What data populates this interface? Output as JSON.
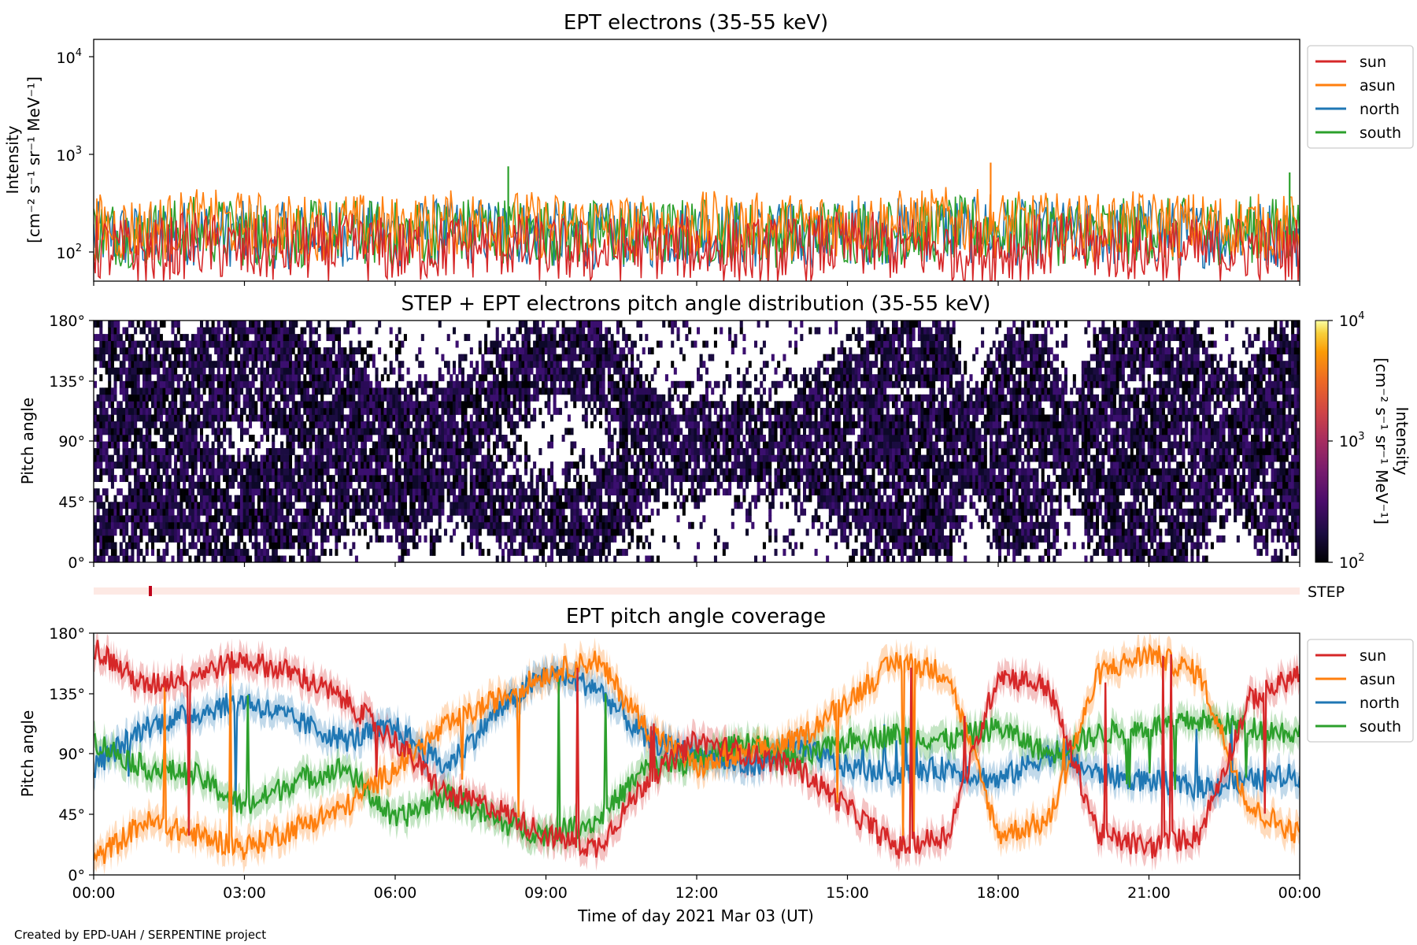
{
  "figure": {
    "credit": "Created by EPD-UAH / SERPENTINE project",
    "xlabel": "Time of day 2021 Mar 03 (UT)",
    "x_ticks": [
      "00:00",
      "03:00",
      "06:00",
      "09:00",
      "12:00",
      "15:00",
      "18:00",
      "21:00",
      "00:00"
    ]
  },
  "colors": {
    "sun": "#d62728",
    "asun": "#ff7f0e",
    "north": "#1f77b4",
    "south": "#2ca02c",
    "step_strip": "#fde9e4",
    "step_mark": "#c0001a"
  },
  "legend": {
    "entries": [
      {
        "name": "sun",
        "color": "#d62728"
      },
      {
        "name": "asun",
        "color": "#ff7f0e"
      },
      {
        "name": "north",
        "color": "#1f77b4"
      },
      {
        "name": "south",
        "color": "#2ca02c"
      }
    ]
  },
  "panel1": {
    "title": "EPT electrons (35-55 keV)",
    "ylabel_line1": "Intensity",
    "ylabel_line2": "[cm⁻² s⁻¹ sr⁻¹ MeV⁻¹]",
    "y_ticks": [
      {
        "base": "10",
        "exp": "2"
      },
      {
        "base": "10",
        "exp": "3"
      },
      {
        "base": "10",
        "exp": "4"
      }
    ]
  },
  "panel2": {
    "title": "STEP + EPT electrons pitch angle distribution (35-55 keV)",
    "ylabel": "Pitch angle",
    "y_ticks": [
      "0°",
      "45°",
      "90°",
      "135°",
      "180°"
    ],
    "colorbar": {
      "label": "Intensity",
      "units": "[cm⁻² s⁻¹ sr⁻¹ MeV⁻¹]",
      "ticks": [
        {
          "base": "10",
          "exp": "2"
        },
        {
          "base": "10",
          "exp": "3"
        },
        {
          "base": "10",
          "exp": "4"
        }
      ]
    }
  },
  "step_strip": {
    "label": "STEP"
  },
  "panel3": {
    "title": "EPT pitch angle coverage",
    "ylabel": "Pitch angle",
    "y_ticks": [
      "0°",
      "45°",
      "90°",
      "135°",
      "180°"
    ]
  },
  "chart_data": [
    {
      "type": "line",
      "title": "EPT electrons (35-55 keV)",
      "ylabel": "Intensity [cm⁻² s⁻¹ sr⁻¹ MeV⁻¹]",
      "y_scale": "log",
      "ylim": [
        50,
        15000
      ],
      "xlim": [
        "00:00",
        "24:00"
      ],
      "x_unit": "hours (UT)",
      "x": [
        0,
        1,
        2,
        3,
        4,
        5,
        6,
        7,
        8,
        9,
        10,
        11,
        12,
        13,
        14,
        15,
        16,
        17,
        18,
        19,
        20,
        21,
        22,
        23,
        24
      ],
      "series": [
        {
          "name": "sun",
          "values": [
            110,
            95,
            120,
            100,
            105,
            115,
            100,
            110,
            120,
            105,
            100,
            115,
            110,
            100,
            105,
            120,
            110,
            105,
            100,
            115,
            110,
            105,
            100,
            110,
            105
          ]
        },
        {
          "name": "asun",
          "values": [
            180,
            170,
            200,
            190,
            175,
            185,
            170,
            195,
            200,
            185,
            180,
            175,
            190,
            185,
            180,
            200,
            195,
            210,
            190,
            185,
            180,
            190,
            185,
            180,
            175
          ]
        },
        {
          "name": "north",
          "values": [
            150,
            140,
            160,
            150,
            145,
            155,
            150,
            160,
            165,
            150,
            145,
            150,
            155,
            150,
            145,
            160,
            165,
            170,
            160,
            155,
            150,
            160,
            150,
            155,
            150
          ]
        },
        {
          "name": "south",
          "values": [
            160,
            150,
            170,
            155,
            150,
            160,
            150,
            165,
            170,
            160,
            155,
            150,
            165,
            155,
            150,
            165,
            160,
            170,
            165,
            160,
            155,
            165,
            160,
            170,
            165
          ]
        }
      ],
      "peaks": [
        {
          "series": "south",
          "x": 8.25,
          "value": 750
        },
        {
          "series": "asun",
          "x": 17.85,
          "value": 820
        },
        {
          "series": "south",
          "x": 23.8,
          "value": 650
        }
      ],
      "legend": "upper right, outside"
    },
    {
      "type": "heatmap",
      "title": "STEP + EPT electrons pitch angle distribution (35-55 keV)",
      "ylabel": "Pitch angle",
      "ylim": [
        0,
        180
      ],
      "xlim": [
        "00:00",
        "24:00"
      ],
      "color_scale": "log",
      "clim": [
        100,
        10000
      ],
      "colormap": "inferno",
      "note": "cells drawn where intensity exceeds the colour floor; values mostly near 10^2"
    },
    {
      "type": "line",
      "title": "EPT pitch angle coverage",
      "ylabel": "Pitch angle",
      "ylim": [
        0,
        180
      ],
      "xlim": [
        "00:00",
        "24:00"
      ],
      "x_unit": "hours (UT)",
      "x": [
        0,
        1,
        2,
        3,
        4,
        5,
        6,
        7,
        8,
        9,
        10,
        11,
        12,
        13,
        14,
        15,
        16,
        17,
        18,
        19,
        20,
        21,
        22,
        23,
        24
      ],
      "series": [
        {
          "name": "sun",
          "values": [
            170,
            140,
            150,
            160,
            150,
            130,
            100,
            60,
            50,
            30,
            20,
            70,
            100,
            90,
            80,
            50,
            20,
            30,
            150,
            140,
            30,
            20,
            30,
            130,
            150
          ]
        },
        {
          "name": "asun",
          "values": [
            10,
            40,
            30,
            20,
            35,
            50,
            80,
            110,
            130,
            150,
            160,
            110,
            80,
            90,
            100,
            130,
            160,
            150,
            30,
            40,
            150,
            165,
            150,
            50,
            30
          ]
        },
        {
          "name": "north",
          "values": [
            80,
            110,
            120,
            130,
            115,
            100,
            110,
            80,
            120,
            150,
            140,
            100,
            90,
            80,
            95,
            80,
            75,
            80,
            70,
            90,
            75,
            70,
            65,
            70,
            75
          ]
        },
        {
          "name": "south",
          "values": [
            100,
            80,
            75,
            50,
            70,
            80,
            40,
            60,
            40,
            30,
            40,
            80,
            85,
            100,
            85,
            100,
            105,
            100,
            110,
            90,
            105,
            110,
            115,
            110,
            105
          ]
        }
      ],
      "shading": "uncertainty band around each series",
      "legend": "upper right, outside"
    }
  ]
}
